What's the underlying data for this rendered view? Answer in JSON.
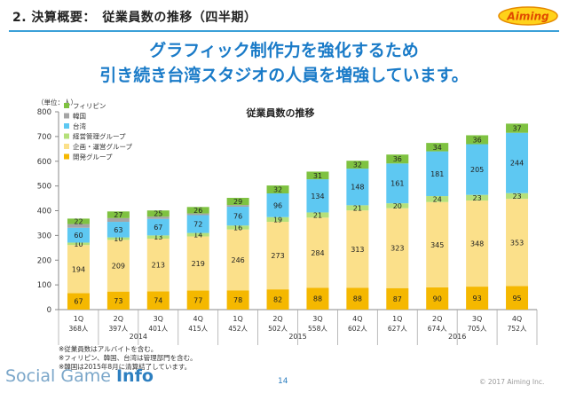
{
  "header": {
    "title": "2. 決算概要：　従業員数の推移（四半期）",
    "logo_text": "Aiming"
  },
  "headline": {
    "line1": "グラフィック制作力を強化するため",
    "line2": "引き続き台湾スタジオの人員を増強しています。"
  },
  "footer": {
    "brand_plain": "Social Game ",
    "brand_bold": "Info",
    "page_number": "14",
    "copyright": "© 2017 Aiming Inc."
  },
  "notes": [
    "※従業員数はアルバイトを含む。",
    "※フィリピン、韓国、台湾は管理部門を含む。",
    "※韓国は2015年8月に清算結了しています。"
  ],
  "colors": {
    "accent_blue": "#1a7bc8",
    "header_rule": "#3aa0d8"
  },
  "chart_data": {
    "type": "bar",
    "stacked": true,
    "title": "従業員数の推移",
    "unit_label": "（単位：人）",
    "ylim": [
      0,
      800
    ],
    "yticks": [
      0,
      100,
      200,
      300,
      400,
      500,
      600,
      700,
      800
    ],
    "grid": false,
    "legend_placement": "top-left",
    "categories": [
      "1Q",
      "2Q",
      "3Q",
      "4Q",
      "1Q",
      "2Q",
      "3Q",
      "4Q",
      "1Q",
      "2Q",
      "3Q",
      "4Q"
    ],
    "category_totals": [
      "368人",
      "397人",
      "401人",
      "415人",
      "452人",
      "502人",
      "558人",
      "602人",
      "627人",
      "674人",
      "705人",
      "752人"
    ],
    "years": [
      {
        "label": "2014",
        "start": 0,
        "end": 3
      },
      {
        "label": "2015",
        "start": 4,
        "end": 7
      },
      {
        "label": "2016",
        "start": 8,
        "end": 11
      }
    ],
    "series": [
      {
        "name": "開発グループ",
        "color": "#f5b800",
        "values": [
          67,
          73,
          74,
          77,
          78,
          82,
          88,
          88,
          87,
          90,
          93,
          95
        ]
      },
      {
        "name": "企画・運営グループ",
        "color": "#fbe08a",
        "values": [
          194,
          209,
          213,
          219,
          246,
          273,
          284,
          313,
          323,
          345,
          348,
          353
        ]
      },
      {
        "name": "経営管理グループ",
        "color": "#b5e07a",
        "values": [
          10,
          10,
          13,
          14,
          16,
          19,
          21,
          21,
          20,
          24,
          23,
          23
        ]
      },
      {
        "name": "台湾",
        "color": "#5ec8f2",
        "values": [
          60,
          63,
          67,
          72,
          76,
          96,
          134,
          148,
          161,
          181,
          205,
          244
        ]
      },
      {
        "name": "韓国",
        "color": "#a5a5a5",
        "values": [
          15,
          15,
          9,
          7,
          7,
          0,
          0,
          0,
          0,
          0,
          0,
          0
        ]
      },
      {
        "name": "フィリピン",
        "color": "#7fc241",
        "values": [
          22,
          27,
          25,
          26,
          29,
          32,
          31,
          32,
          36,
          34,
          36,
          37
        ]
      }
    ],
    "legend_order": [
      "フィリピン",
      "韓国",
      "台湾",
      "経営管理グループ",
      "企画・運営グループ",
      "開発グループ"
    ]
  }
}
